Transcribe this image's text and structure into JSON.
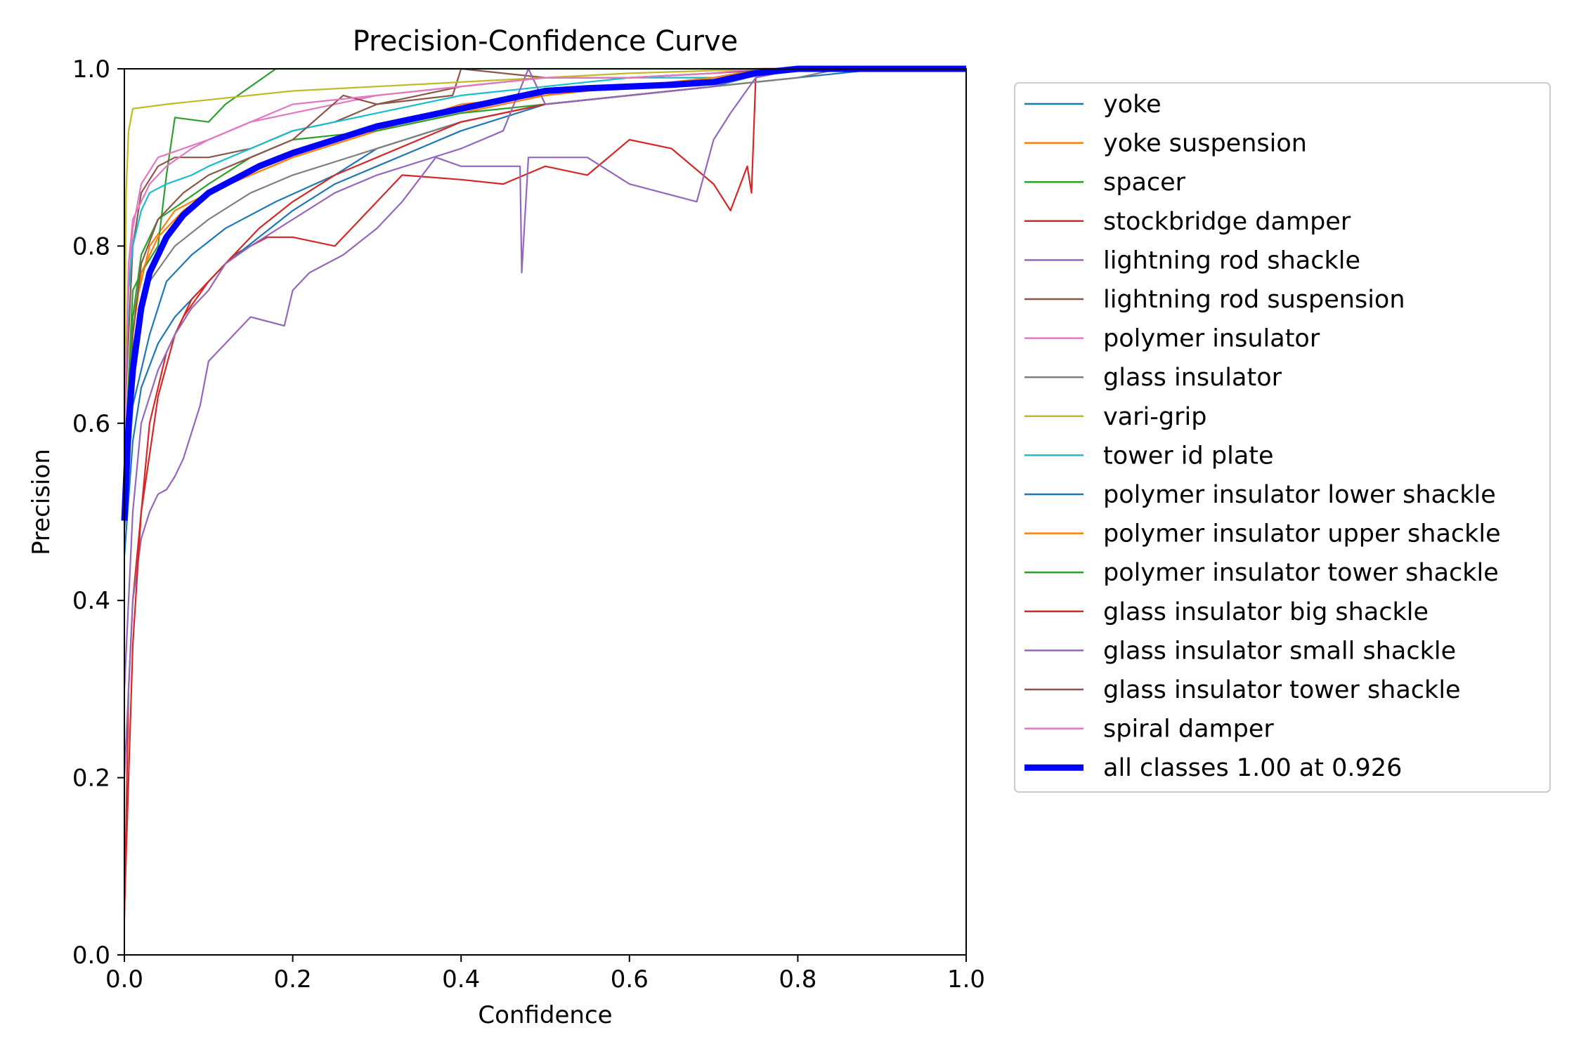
{
  "chart_data": {
    "type": "line",
    "title": "Precision-Confidence Curve",
    "xlabel": "Confidence",
    "ylabel": "Precision",
    "xlim": [
      0,
      1
    ],
    "ylim": [
      0,
      1
    ],
    "xticks": [
      0.0,
      0.2,
      0.4,
      0.6,
      0.8,
      1.0
    ],
    "xtick_labels": [
      "0.0",
      "0.2",
      "0.4",
      "0.6",
      "0.8",
      "1.0"
    ],
    "yticks": [
      0.0,
      0.2,
      0.4,
      0.6,
      0.8,
      1.0
    ],
    "ytick_labels": [
      "0.0",
      "0.2",
      "0.4",
      "0.6",
      "0.8",
      "1.0"
    ],
    "grid": false,
    "legend_position": "outside-right-top",
    "series": [
      {
        "name": "yoke",
        "color": "#1f77b4",
        "x": [
          0.0,
          0.01,
          0.03,
          0.05,
          0.08,
          0.12,
          0.18,
          0.25,
          0.3,
          0.4,
          0.5,
          0.6,
          0.7,
          0.8,
          0.9,
          1.0
        ],
        "y": [
          0.48,
          0.62,
          0.7,
          0.76,
          0.79,
          0.82,
          0.85,
          0.88,
          0.91,
          0.94,
          0.96,
          0.97,
          0.98,
          0.99,
          1.0,
          1.0
        ]
      },
      {
        "name": "yoke suspension",
        "color": "#ff7f0e",
        "x": [
          0.0,
          0.01,
          0.03,
          0.06,
          0.1,
          0.15,
          0.2,
          0.3,
          0.4,
          0.5,
          0.6,
          0.7,
          0.76,
          0.85,
          1.0
        ],
        "y": [
          0.55,
          0.72,
          0.8,
          0.84,
          0.86,
          0.88,
          0.9,
          0.93,
          0.95,
          0.97,
          0.98,
          0.99,
          1.0,
          1.0,
          1.0
        ]
      },
      {
        "name": "spacer",
        "color": "#2ca02c",
        "x": [
          0.0,
          0.01,
          0.02,
          0.04,
          0.05,
          0.06,
          0.1,
          0.12,
          0.15,
          0.18,
          0.25,
          1.0
        ],
        "y": [
          0.55,
          0.75,
          0.77,
          0.8,
          0.88,
          0.945,
          0.94,
          0.96,
          0.98,
          1.0,
          1.0,
          1.0
        ]
      },
      {
        "name": "stockbridge damper",
        "color": "#d62728",
        "x": [
          0.0,
          0.005,
          0.01,
          0.02,
          0.03,
          0.05,
          0.07,
          0.1,
          0.13,
          0.17,
          0.2,
          0.25,
          0.3,
          0.33,
          0.4,
          0.45,
          0.5,
          0.55,
          0.6,
          0.65,
          0.7,
          0.72,
          0.74,
          0.745,
          0.75,
          0.8,
          1.0
        ],
        "y": [
          0.04,
          0.3,
          0.4,
          0.5,
          0.6,
          0.68,
          0.72,
          0.76,
          0.79,
          0.81,
          0.81,
          0.8,
          0.85,
          0.88,
          0.875,
          0.87,
          0.89,
          0.88,
          0.92,
          0.91,
          0.87,
          0.84,
          0.89,
          0.86,
          0.99,
          1.0,
          1.0
        ]
      },
      {
        "name": "lightning rod shackle",
        "color": "#9467bd",
        "x": [
          0.0,
          0.01,
          0.02,
          0.03,
          0.04,
          0.05,
          0.06,
          0.07,
          0.09,
          0.1,
          0.12,
          0.15,
          0.19,
          0.2,
          0.22,
          0.26,
          0.3,
          0.33,
          0.37,
          0.4,
          0.45,
          0.47,
          0.472,
          0.48,
          0.55,
          0.6,
          0.68,
          0.7,
          0.72,
          0.75,
          0.8,
          1.0
        ],
        "y": [
          0.2,
          0.4,
          0.47,
          0.5,
          0.52,
          0.525,
          0.54,
          0.56,
          0.62,
          0.67,
          0.69,
          0.72,
          0.71,
          0.75,
          0.77,
          0.79,
          0.82,
          0.85,
          0.9,
          0.89,
          0.89,
          0.89,
          0.77,
          0.9,
          0.9,
          0.87,
          0.85,
          0.92,
          0.95,
          0.99,
          1.0,
          1.0
        ]
      },
      {
        "name": "lightning rod suspension",
        "color": "#8c564b",
        "x": [
          0.0,
          0.01,
          0.02,
          0.04,
          0.06,
          0.1,
          0.15,
          0.2,
          0.25,
          0.3,
          0.39,
          0.4,
          0.5,
          0.6,
          0.7,
          0.76,
          1.0
        ],
        "y": [
          0.6,
          0.8,
          0.86,
          0.89,
          0.9,
          0.9,
          0.91,
          0.93,
          0.94,
          0.96,
          0.97,
          1.0,
          0.99,
          0.99,
          0.995,
          1.0,
          1.0
        ]
      },
      {
        "name": "polymer insulator",
        "color": "#e377c2",
        "x": [
          0.0,
          0.005,
          0.01,
          0.02,
          0.04,
          0.07,
          0.1,
          0.15,
          0.2,
          0.3,
          0.4,
          0.5,
          0.6,
          0.7,
          0.75,
          1.0
        ],
        "y": [
          0.6,
          0.75,
          0.82,
          0.87,
          0.9,
          0.91,
          0.92,
          0.94,
          0.95,
          0.97,
          0.98,
          0.99,
          0.99,
          0.995,
          1.0,
          1.0
        ]
      },
      {
        "name": "glass insulator",
        "color": "#7f7f7f",
        "x": [
          0.0,
          0.01,
          0.03,
          0.06,
          0.1,
          0.15,
          0.2,
          0.3,
          0.4,
          0.5,
          0.6,
          0.7,
          0.8,
          0.85,
          1.0
        ],
        "y": [
          0.5,
          0.68,
          0.76,
          0.8,
          0.83,
          0.86,
          0.88,
          0.91,
          0.94,
          0.96,
          0.97,
          0.98,
          0.99,
          1.0,
          1.0
        ]
      },
      {
        "name": "vari-grip",
        "color": "#bcbd22",
        "x": [
          0.0,
          0.002,
          0.005,
          0.01,
          0.05,
          0.1,
          0.2,
          0.3,
          0.4,
          0.5,
          0.6,
          0.7,
          0.75,
          1.0
        ],
        "y": [
          0.6,
          0.86,
          0.93,
          0.955,
          0.96,
          0.965,
          0.975,
          0.98,
          0.985,
          0.99,
          0.995,
          0.998,
          1.0,
          1.0
        ]
      },
      {
        "name": "tower id plate",
        "color": "#17becf",
        "x": [
          0.0,
          0.005,
          0.01,
          0.02,
          0.03,
          0.05,
          0.08,
          0.1,
          0.15,
          0.2,
          0.3,
          0.4,
          0.5,
          0.6,
          0.7,
          0.76,
          1.0
        ],
        "y": [
          0.62,
          0.75,
          0.8,
          0.84,
          0.86,
          0.87,
          0.88,
          0.89,
          0.91,
          0.93,
          0.95,
          0.97,
          0.98,
          0.99,
          0.99,
          1.0,
          1.0
        ]
      },
      {
        "name": "polymer insulator lower shackle",
        "color": "#1f77b4",
        "x": [
          0.0,
          0.01,
          0.02,
          0.04,
          0.06,
          0.09,
          0.12,
          0.16,
          0.2,
          0.25,
          0.3,
          0.35,
          0.4,
          0.5,
          0.6,
          0.7,
          0.78,
          1.0
        ],
        "y": [
          0.45,
          0.58,
          0.64,
          0.69,
          0.72,
          0.75,
          0.78,
          0.81,
          0.84,
          0.87,
          0.89,
          0.91,
          0.93,
          0.96,
          0.97,
          0.98,
          1.0,
          1.0
        ]
      },
      {
        "name": "polymer insulator upper shackle",
        "color": "#ff7f0e",
        "x": [
          0.0,
          0.01,
          0.02,
          0.04,
          0.07,
          0.1,
          0.15,
          0.2,
          0.3,
          0.4,
          0.5,
          0.6,
          0.7,
          0.76,
          1.0
        ],
        "y": [
          0.55,
          0.7,
          0.77,
          0.81,
          0.84,
          0.86,
          0.88,
          0.9,
          0.93,
          0.96,
          0.97,
          0.98,
          0.99,
          1.0,
          1.0
        ]
      },
      {
        "name": "polymer insulator tower shackle",
        "color": "#2ca02c",
        "x": [
          0.0,
          0.01,
          0.02,
          0.04,
          0.07,
          0.1,
          0.15,
          0.2,
          0.3,
          0.4,
          0.5,
          0.6,
          0.7,
          0.76,
          1.0
        ],
        "y": [
          0.55,
          0.72,
          0.79,
          0.83,
          0.85,
          0.87,
          0.9,
          0.92,
          0.93,
          0.95,
          0.96,
          0.97,
          0.98,
          1.0,
          1.0
        ]
      },
      {
        "name": "glass insulator big shackle",
        "color": "#d62728",
        "x": [
          0.0,
          0.01,
          0.02,
          0.04,
          0.06,
          0.08,
          0.1,
          0.13,
          0.16,
          0.2,
          0.25,
          0.3,
          0.35,
          0.4,
          0.5,
          0.6,
          0.7,
          0.76,
          1.0
        ],
        "y": [
          0.05,
          0.35,
          0.5,
          0.63,
          0.7,
          0.74,
          0.76,
          0.79,
          0.82,
          0.85,
          0.88,
          0.9,
          0.92,
          0.94,
          0.96,
          0.97,
          0.98,
          1.0,
          1.0
        ]
      },
      {
        "name": "glass insulator small shackle",
        "color": "#9467bd",
        "x": [
          0.0,
          0.01,
          0.02,
          0.04,
          0.06,
          0.08,
          0.1,
          0.12,
          0.15,
          0.2,
          0.25,
          0.3,
          0.4,
          0.45,
          0.48,
          0.5,
          0.6,
          0.7,
          0.76,
          1.0
        ],
        "y": [
          0.3,
          0.5,
          0.6,
          0.66,
          0.7,
          0.73,
          0.75,
          0.78,
          0.8,
          0.83,
          0.86,
          0.88,
          0.91,
          0.93,
          1.0,
          0.96,
          0.97,
          0.98,
          1.0,
          1.0
        ]
      },
      {
        "name": "glass insulator tower shackle",
        "color": "#8c564b",
        "x": [
          0.0,
          0.01,
          0.02,
          0.04,
          0.07,
          0.1,
          0.15,
          0.2,
          0.26,
          0.3,
          0.35,
          0.4,
          0.5,
          0.6,
          0.7,
          0.78,
          1.0
        ],
        "y": [
          0.5,
          0.7,
          0.78,
          0.83,
          0.86,
          0.88,
          0.9,
          0.92,
          0.97,
          0.96,
          0.97,
          0.98,
          0.99,
          0.99,
          0.995,
          1.0,
          1.0
        ]
      },
      {
        "name": "spiral damper",
        "color": "#e377c2",
        "x": [
          0.0,
          0.005,
          0.01,
          0.03,
          0.05,
          0.08,
          0.1,
          0.15,
          0.2,
          0.3,
          0.4,
          0.5,
          0.6,
          0.7,
          0.75,
          1.0
        ],
        "y": [
          0.6,
          0.78,
          0.83,
          0.87,
          0.89,
          0.91,
          0.92,
          0.94,
          0.96,
          0.97,
          0.98,
          0.99,
          0.99,
          0.995,
          1.0,
          1.0
        ]
      },
      {
        "name": "all classes 1.00 at 0.926",
        "color": "#0000ff",
        "bold": true,
        "x": [
          0.0,
          0.005,
          0.01,
          0.02,
          0.03,
          0.05,
          0.07,
          0.1,
          0.13,
          0.16,
          0.2,
          0.25,
          0.3,
          0.35,
          0.4,
          0.45,
          0.5,
          0.55,
          0.6,
          0.65,
          0.7,
          0.75,
          0.8,
          0.85,
          0.9,
          0.926,
          1.0
        ],
        "y": [
          0.49,
          0.6,
          0.66,
          0.73,
          0.77,
          0.81,
          0.835,
          0.86,
          0.875,
          0.89,
          0.905,
          0.92,
          0.935,
          0.945,
          0.955,
          0.965,
          0.975,
          0.978,
          0.98,
          0.982,
          0.985,
          0.995,
          1.0,
          1.0,
          1.0,
          1.0,
          1.0
        ]
      }
    ]
  }
}
